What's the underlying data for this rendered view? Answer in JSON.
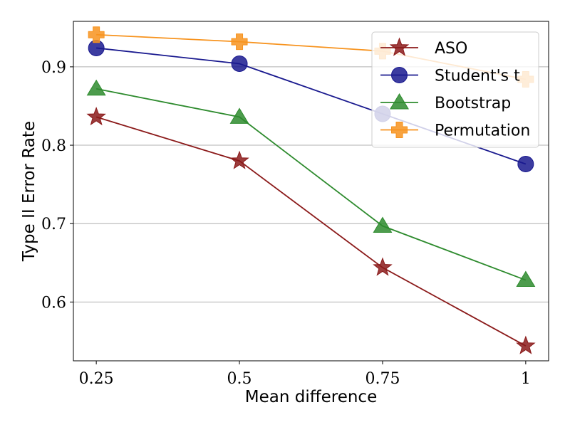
{
  "chart_data": {
    "type": "line",
    "xlabel": "Mean difference",
    "ylabel": "Type II Error Rate",
    "x": [
      0.25,
      0.5,
      0.75,
      1.0
    ],
    "x_tick_labels": [
      "0.25",
      "0.5",
      "0.75",
      "1"
    ],
    "xlim": [
      0.21,
      1.04
    ],
    "y_ticks": [
      0.6,
      0.7,
      0.8,
      0.9
    ],
    "y_tick_labels": [
      "0.6",
      "0.7",
      "0.8",
      "0.9"
    ],
    "ylim": [
      0.525,
      0.958
    ],
    "grid": "horizontal",
    "legend_position": "top-right",
    "series": [
      {
        "name": "ASO",
        "color": "#8b1a1a",
        "marker": "star",
        "values": [
          0.836,
          0.78,
          0.644,
          0.544
        ]
      },
      {
        "name": "Student's t",
        "color": "#1a1a8f",
        "marker": "circle",
        "values": [
          0.924,
          0.904,
          0.84,
          0.776
        ]
      },
      {
        "name": "Bootstrap",
        "color": "#2e8b2e",
        "marker": "triangle",
        "values": [
          0.872,
          0.836,
          0.697,
          0.628
        ]
      },
      {
        "name": "Permutation",
        "color": "#f7931e",
        "marker": "plus",
        "values": [
          0.941,
          0.932,
          0.92,
          0.884
        ]
      }
    ]
  }
}
